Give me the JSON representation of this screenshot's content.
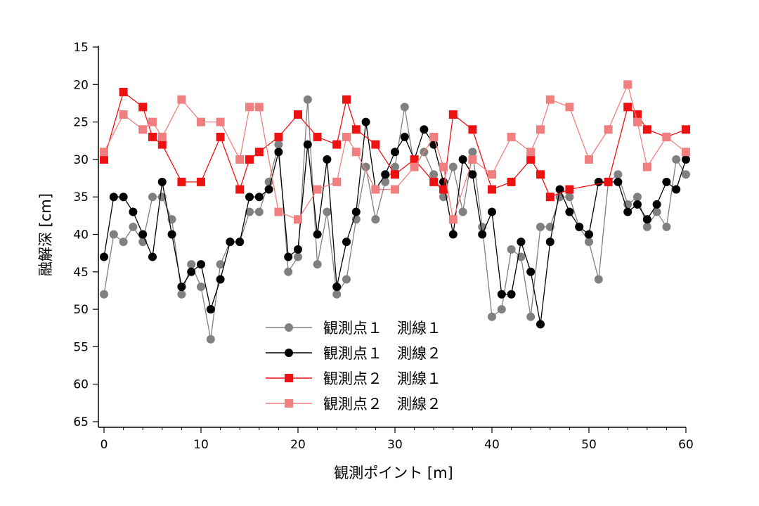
{
  "chart_data": {
    "type": "line",
    "title": "",
    "xlabel": "観測ポイント [m]",
    "ylabel": "融解深 [cm]",
    "xlim": [
      0,
      60
    ],
    "ylim": [
      15,
      65
    ],
    "y_inverted": true,
    "x_ticks": [
      0,
      10,
      20,
      30,
      40,
      50,
      60
    ],
    "y_ticks": [
      15,
      20,
      25,
      30,
      35,
      40,
      45,
      50,
      55,
      60,
      65
    ],
    "grid": false,
    "legend_position": "lower-center",
    "series": [
      {
        "name": "観測点１　測線１",
        "color": "#808080",
        "marker": "circle",
        "x": [
          0,
          1,
          2,
          3,
          4,
          5,
          6,
          7,
          8,
          9,
          10,
          11,
          12,
          13,
          14,
          15,
          16,
          17,
          18,
          19,
          20,
          21,
          22,
          23,
          24,
          25,
          26,
          27,
          28,
          29,
          30,
          31,
          32,
          33,
          34,
          35,
          36,
          37,
          38,
          39,
          40,
          41,
          42,
          43,
          44,
          45,
          46,
          47,
          48,
          49,
          50,
          51,
          52,
          53,
          54,
          55,
          56,
          57,
          58,
          59,
          60
        ],
        "values": [
          48,
          40,
          41,
          39,
          41,
          35,
          35,
          38,
          48,
          44,
          47,
          54,
          44,
          41,
          41,
          37,
          37,
          33,
          28,
          45,
          43,
          22,
          44,
          37,
          48,
          46,
          38,
          31,
          38,
          33,
          31,
          23,
          31,
          29,
          32,
          35,
          31,
          37,
          29,
          39,
          51,
          50,
          42,
          43,
          51,
          39,
          39,
          35,
          35,
          39,
          41,
          46,
          33,
          32,
          36,
          35,
          39,
          37,
          39,
          30,
          32
        ]
      },
      {
        "name": "観測点１　測線２",
        "color": "#000000",
        "marker": "circle",
        "x": [
          0,
          1,
          2,
          3,
          4,
          5,
          6,
          7,
          8,
          9,
          10,
          11,
          12,
          13,
          14,
          15,
          16,
          17,
          18,
          19,
          20,
          21,
          22,
          23,
          24,
          25,
          26,
          27,
          28,
          29,
          30,
          31,
          32,
          33,
          34,
          35,
          36,
          37,
          38,
          39,
          40,
          41,
          42,
          43,
          44,
          45,
          46,
          47,
          48,
          49,
          50,
          51,
          52,
          53,
          54,
          55,
          56,
          57,
          58,
          59,
          60
        ],
        "values": [
          43,
          35,
          35,
          37,
          40,
          43,
          33,
          40,
          47,
          45,
          44,
          50,
          46,
          41,
          41,
          35,
          35,
          34,
          29,
          43,
          42,
          28,
          40,
          30,
          47,
          41,
          37,
          25,
          34,
          32,
          29,
          27,
          30,
          26,
          28,
          33,
          40,
          30,
          32,
          40,
          37,
          48,
          48,
          41,
          45,
          52,
          41,
          34,
          37,
          39,
          40,
          33,
          33,
          33,
          37,
          36,
          38,
          36,
          33,
          34,
          30
        ]
      },
      {
        "name": "観測点２　測線１",
        "color": "#ee1111",
        "marker": "square",
        "x": [
          0,
          2,
          4,
          5,
          6,
          8,
          10,
          12,
          14,
          15,
          16,
          18,
          20,
          22,
          24,
          25,
          26,
          28,
          30,
          32,
          34,
          35,
          36,
          38,
          40,
          42,
          44,
          45,
          46,
          48,
          52,
          54,
          55,
          56,
          58,
          60
        ],
        "values": [
          30,
          21,
          23,
          27,
          28,
          33,
          33,
          27,
          34,
          30,
          29,
          27,
          24,
          27,
          28,
          22,
          26,
          28,
          32,
          30,
          33,
          34,
          24,
          26,
          34,
          33,
          30,
          32,
          35,
          34,
          33,
          23,
          24,
          26,
          27,
          26
        ]
      },
      {
        "name": "観測点２　測線２",
        "color": "#f08080",
        "marker": "square",
        "x": [
          0,
          2,
          4,
          5,
          6,
          8,
          10,
          12,
          14,
          15,
          16,
          18,
          20,
          22,
          24,
          25,
          26,
          28,
          30,
          32,
          34,
          35,
          36,
          38,
          40,
          42,
          44,
          45,
          46,
          48,
          50,
          52,
          54,
          55,
          56,
          58,
          60
        ],
        "values": [
          29,
          24,
          26,
          25,
          27,
          22,
          25,
          25,
          30,
          23,
          23,
          37,
          38,
          34,
          33,
          27,
          29,
          34,
          34,
          31,
          27,
          31,
          38,
          30,
          32,
          27,
          29,
          26,
          22,
          23,
          30,
          26,
          20,
          25,
          31,
          27,
          29
        ]
      }
    ]
  }
}
